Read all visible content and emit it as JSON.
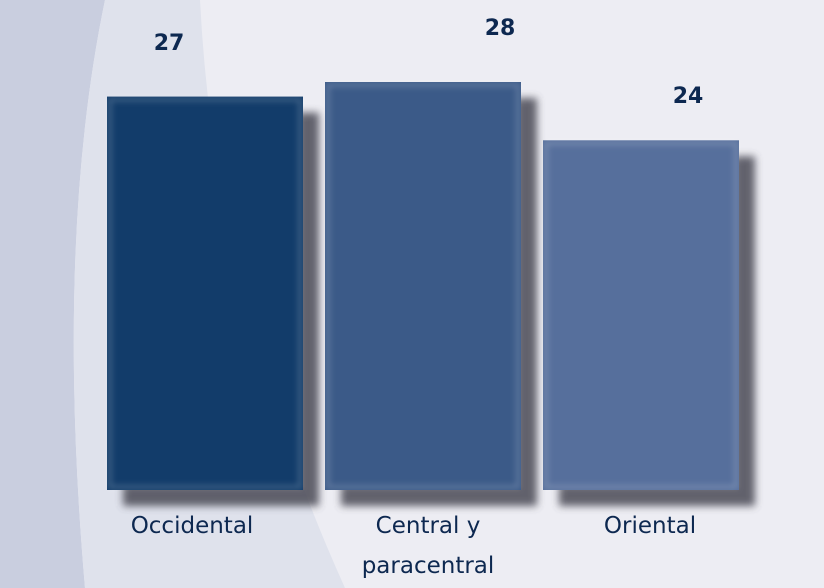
{
  "chart_data": {
    "type": "bar",
    "categories": [
      "Occidental",
      "Central y paracentral",
      "Oriental"
    ],
    "values": [
      27,
      28,
      24
    ],
    "category_labels": [
      [
        "Occidental"
      ],
      [
        "Central y",
        "paracentral"
      ],
      [
        "Oriental"
      ]
    ],
    "value_labels": [
      "27",
      "28",
      "24"
    ],
    "title": "",
    "xlabel": "",
    "ylabel": "",
    "ylim": [
      0,
      28
    ],
    "grid": false,
    "colors": [
      "#123c6a",
      "#3b5a88",
      "#566f9c"
    ]
  }
}
